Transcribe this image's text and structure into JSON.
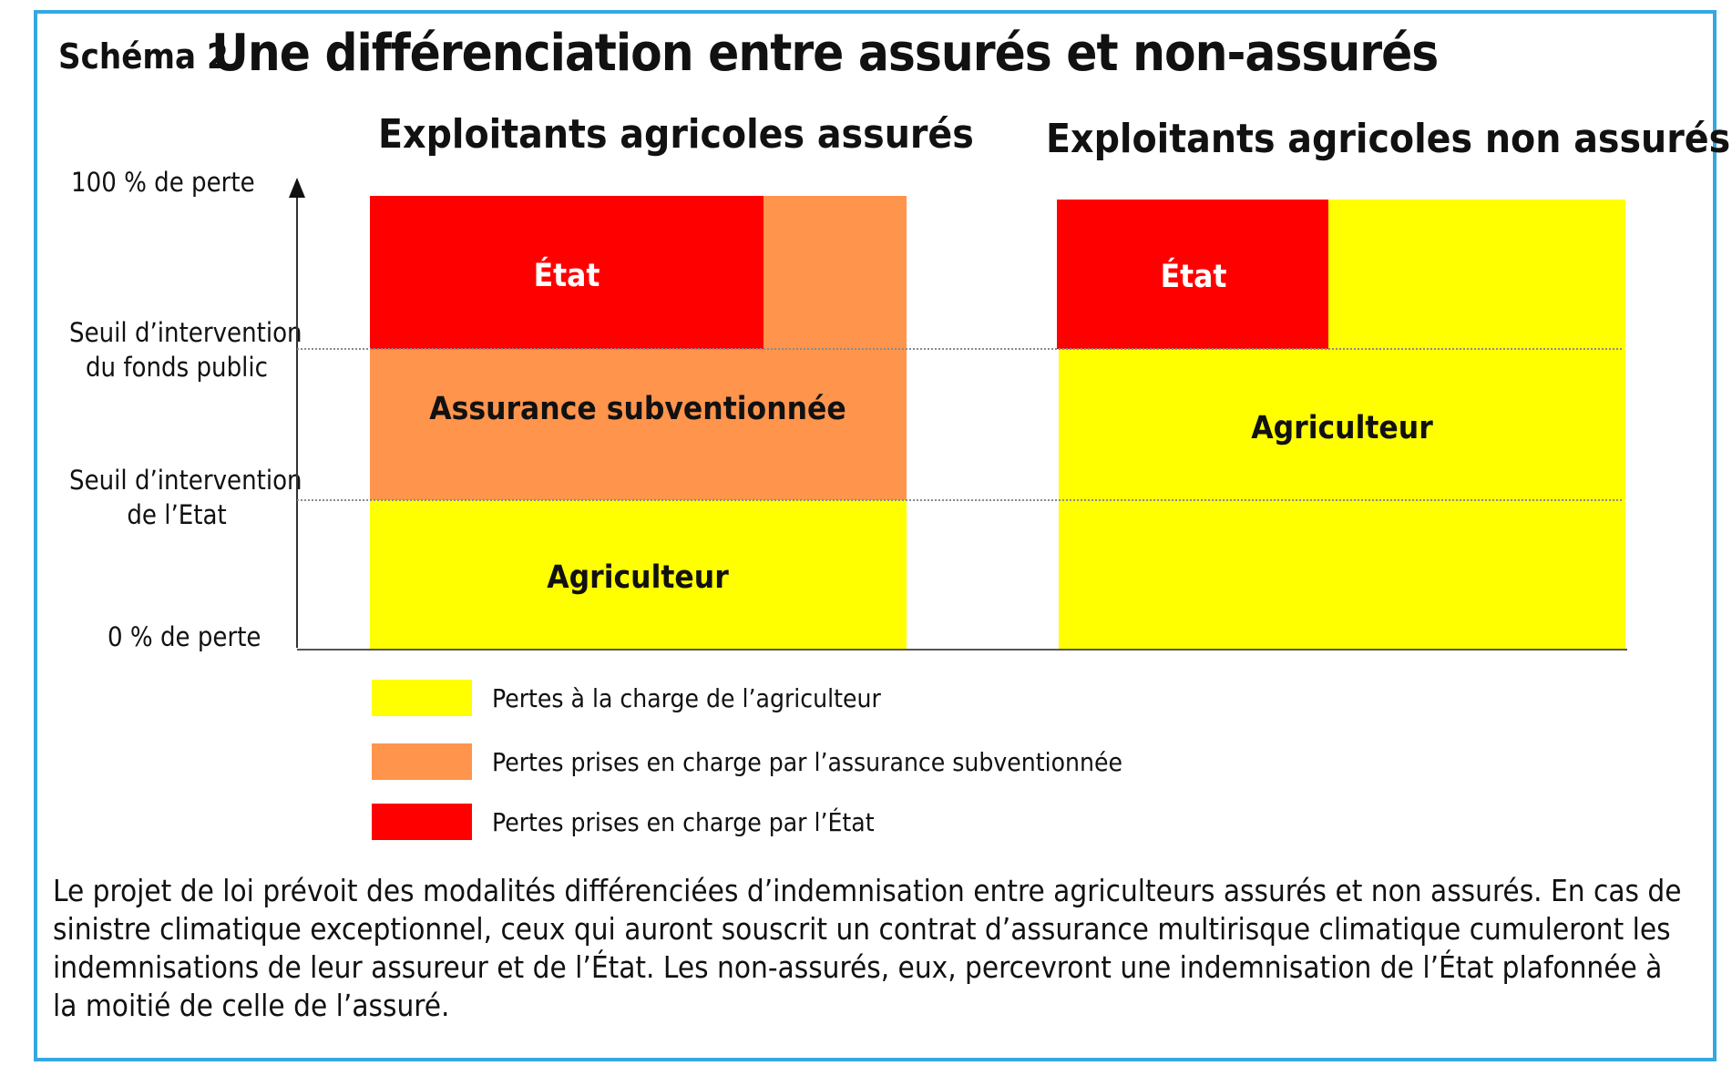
{
  "colors": {
    "agriculteur": "#ffff00",
    "assurance": "#ff944d",
    "etat": "#ff0000",
    "border": "#35a8e0"
  },
  "title": {
    "prefix": "Schéma 2",
    "main": "Une différenciation entre assurés  et non-assurés"
  },
  "axis": {
    "top": "100 % de perte",
    "seuil_fonds_line1": "Seuil d’intervention",
    "seuil_fonds_line2": "du fonds public",
    "seuil_etat_line1": "Seuil d’intervention",
    "seuil_etat_line2": "de l’Etat",
    "bottom": "0 % de perte"
  },
  "panels": {
    "assures": {
      "title": "Exploitants agricoles assurés",
      "etat": "État",
      "assurance": "Assurance subventionnée",
      "agriculteur": "Agriculteur"
    },
    "non_assures": {
      "title": "Exploitants agricoles non assurés",
      "etat": "État",
      "agriculteur": "Agriculteur"
    }
  },
  "legend": [
    {
      "label": "Pertes à la charge de l’agriculteur",
      "color": "#ffff00"
    },
    {
      "label": "Pertes prises en charge par l’assurance subventionnée",
      "color": "#ff944d"
    },
    {
      "label": "Pertes prises en charge par l’État",
      "color": "#ff0000"
    }
  ],
  "caption": "Le projet de loi prévoit des modalités différenciées d’indemnisation entre agriculteurs assurés et non assurés. En cas de sinistre climatique exceptionnel, ceux qui auront souscrit un contrat d’assurance multirisque climatique cumuleront les indemnisations de leur assureur et de l’État. Les non-assurés, eux, percevront une indemnisation de l’État plafonnée à la moitié de celle de l’assuré."
}
